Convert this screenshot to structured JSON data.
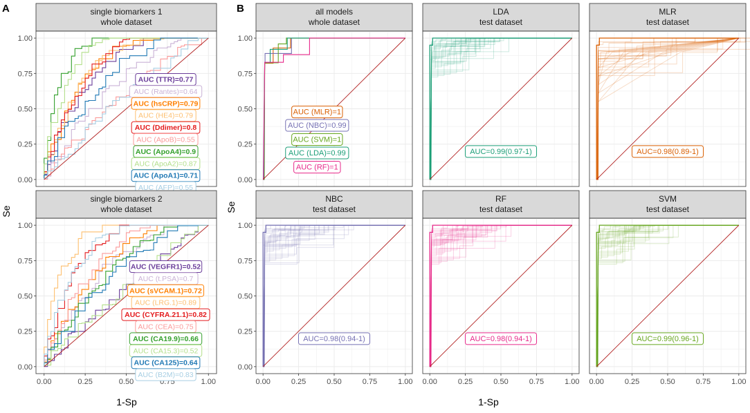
{
  "figure": {
    "panel_A_letter": "A",
    "panel_B_letter": "B",
    "y_label": "Se",
    "x_label": "1-Sp",
    "tick_labels": [
      "0.00",
      "0.25",
      "0.50",
      "0.75",
      "1.00"
    ],
    "colors": {
      "LDA": "#1b9e77",
      "MLR": "#d95f02",
      "NBC": "#7570b3",
      "RF": "#e7298a",
      "SVM": "#66a61e",
      "diagonal": "#b22222",
      "strip_bg": "#d9d9d9",
      "grid": "#ebebeb"
    }
  },
  "chart_data": [
    {
      "id": "sb1",
      "type": "line",
      "title": "single biomarkers 1",
      "subtitle": "whole dataset",
      "xlabel": "1-Sp",
      "ylabel": "Se",
      "xlim": [
        0,
        1
      ],
      "ylim": [
        0,
        1
      ],
      "series": [
        {
          "name": "TTR",
          "label": "AUC (TTR)=0.77",
          "color": "#6a3d9a",
          "auc": 0.77
        },
        {
          "name": "Rantes",
          "label": "AUC (Rantes)=0.64",
          "color": "#cab2d6",
          "auc": 0.64
        },
        {
          "name": "hsCRP",
          "label": "AUC (hsCRP)=0.79",
          "color": "#ff7f00",
          "auc": 0.79
        },
        {
          "name": "HE4",
          "label": "AUC (HE4)=0.79",
          "color": "#fdbf6f",
          "auc": 0.79
        },
        {
          "name": "Ddimer",
          "label": "AUC (Ddimer)=0.8",
          "color": "#e31a1c",
          "auc": 0.8
        },
        {
          "name": "ApoB",
          "label": "AUC (ApoB)=0.55",
          "color": "#fb9a99",
          "auc": 0.55
        },
        {
          "name": "ApoA4",
          "label": "AUC (ApoA4)=0.9",
          "color": "#33a02c",
          "auc": 0.9
        },
        {
          "name": "ApoA2",
          "label": "AUC (ApoA2)=0.87",
          "color": "#b2df8a",
          "auc": 0.87
        },
        {
          "name": "ApoA1",
          "label": "AUC (ApoA1)=0.71",
          "color": "#1f78b4",
          "auc": 0.71
        },
        {
          "name": "AFP",
          "label": "AUC (AFP)=0.55",
          "color": "#a6cee3",
          "auc": 0.55
        }
      ]
    },
    {
      "id": "sb2",
      "type": "line",
      "title": "single biomarkers 2",
      "subtitle": "whole dataset",
      "xlabel": "1-Sp",
      "ylabel": "Se",
      "xlim": [
        0,
        1
      ],
      "ylim": [
        0,
        1
      ],
      "series": [
        {
          "name": "VEGFR1",
          "label": "AUC (VEGFR1)=0.52",
          "color": "#6a3d9a",
          "auc": 0.52
        },
        {
          "name": "t.PSA",
          "label": "AUC (t.PSA)=0.7",
          "color": "#cab2d6",
          "auc": 0.7
        },
        {
          "name": "sVCAM.1",
          "label": "AUC (sVCAM.1)=0.72",
          "color": "#ff7f00",
          "auc": 0.72
        },
        {
          "name": "LRG.1",
          "label": "AUC (LRG.1)=0.89",
          "color": "#fdbf6f",
          "auc": 0.89
        },
        {
          "name": "CYFRA.21.1",
          "label": "AUC (CYFRA.21.1)=0.82",
          "color": "#e31a1c",
          "auc": 0.82
        },
        {
          "name": "CEA",
          "label": "AUC (CEA)=0.75",
          "color": "#fb9a99",
          "auc": 0.75
        },
        {
          "name": "CA19.9",
          "label": "AUC (CA19.9)=0.66",
          "color": "#33a02c",
          "auc": 0.66
        },
        {
          "name": "CA15.3",
          "label": "AUC (CA15.3)=0.52",
          "color": "#b2df8a",
          "auc": 0.52
        },
        {
          "name": "CA125",
          "label": "AUC (CA125)=0.64",
          "color": "#1f78b4",
          "auc": 0.64
        },
        {
          "name": "B2M",
          "label": "AUC (B2M)=0.83",
          "color": "#a6cee3",
          "auc": 0.83
        }
      ]
    },
    {
      "id": "all",
      "type": "line",
      "title": "all models",
      "subtitle": "whole dataset",
      "xlabel": "1-Sp",
      "ylabel": "Se",
      "xlim": [
        0,
        1
      ],
      "ylim": [
        0,
        1
      ],
      "series": [
        {
          "name": "MLR",
          "label": "AUC (MLR)=1",
          "color": "#d95f02",
          "auc": 1
        },
        {
          "name": "NBC",
          "label": "AUC (NBC)=0.99",
          "color": "#7570b3",
          "auc": 0.99
        },
        {
          "name": "SVM",
          "label": "AUC (SVM)=1",
          "color": "#66a61e",
          "auc": 1
        },
        {
          "name": "LDA",
          "label": "AUC (LDA)=0.99",
          "color": "#1b9e77",
          "auc": 0.99
        },
        {
          "name": "RF",
          "label": "AUC (RF)=1",
          "color": "#e7298a",
          "auc": 1
        }
      ]
    },
    {
      "id": "lda",
      "type": "line",
      "title": "LDA",
      "subtitle": "test dataset",
      "xlabel": "1-Sp",
      "ylabel": "Se",
      "xlim": [
        0,
        1
      ],
      "ylim": [
        0,
        1
      ],
      "color": "#1b9e77",
      "auc_label": "AUC=0.99(0.97-1)",
      "auc": 0.99,
      "auc_ci": [
        0.97,
        1
      ]
    },
    {
      "id": "mlr",
      "type": "line",
      "title": "MLR",
      "subtitle": "test dataset",
      "xlabel": "1-Sp",
      "ylabel": "Se",
      "xlim": [
        0,
        1
      ],
      "ylim": [
        0,
        1
      ],
      "color": "#d95f02",
      "auc_label": "AUC=0.98(0.89-1)",
      "auc": 0.98,
      "auc_ci": [
        0.89,
        1
      ]
    },
    {
      "id": "nbc",
      "type": "line",
      "title": "NBC",
      "subtitle": "test dataset",
      "xlabel": "1-Sp",
      "ylabel": "Se",
      "xlim": [
        0,
        1
      ],
      "ylim": [
        0,
        1
      ],
      "color": "#7570b3",
      "auc_label": "AUC=0.98(0.94-1)",
      "auc": 0.98,
      "auc_ci": [
        0.94,
        1
      ]
    },
    {
      "id": "rf",
      "type": "line",
      "title": "RF",
      "subtitle": "test dataset",
      "xlabel": "1-Sp",
      "ylabel": "Se",
      "xlim": [
        0,
        1
      ],
      "ylim": [
        0,
        1
      ],
      "color": "#e7298a",
      "auc_label": "AUC=0.98(0.94-1)",
      "auc": 0.98,
      "auc_ci": [
        0.94,
        1
      ]
    },
    {
      "id": "svm",
      "type": "line",
      "title": "SVM",
      "subtitle": "test dataset",
      "xlabel": "1-Sp",
      "ylabel": "Se",
      "xlim": [
        0,
        1
      ],
      "ylim": [
        0,
        1
      ],
      "color": "#66a61e",
      "auc_label": "AUC=0.99(0.96-1)",
      "auc": 0.99,
      "auc_ci": [
        0.96,
        1
      ]
    }
  ]
}
